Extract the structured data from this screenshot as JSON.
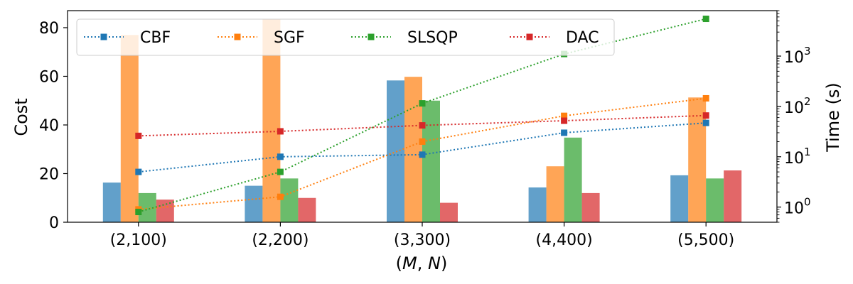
{
  "chart_data": {
    "type": "bar",
    "categories": [
      "(2,100)",
      "(2,200)",
      "(3,300)",
      "(4,400)",
      "(5,500)"
    ],
    "xlabel": "(M, N)",
    "xlabel_parts": [
      "(",
      "M",
      ", ",
      "N",
      ")"
    ],
    "ylabel": "Cost",
    "ylim": [
      0,
      87
    ],
    "yticks": [
      0,
      20,
      40,
      60,
      80
    ],
    "y2label": "Time (s)",
    "y2scale": "log",
    "y2lim": [
      0.5,
      8000
    ],
    "y2ticks": [
      1,
      10,
      100,
      1000
    ],
    "y2tick_labels": [
      {
        "base": "10",
        "exp": "0"
      },
      {
        "base": "10",
        "exp": "1"
      },
      {
        "base": "10",
        "exp": "2"
      },
      {
        "base": "10",
        "exp": "3"
      }
    ],
    "legend_position": "top",
    "series": [
      {
        "name": "CBF",
        "color": "#1f77b4",
        "cost": [
          16.3,
          15.0,
          58.3,
          14.3,
          19.3
        ],
        "time": [
          5,
          10,
          11,
          30,
          47
        ]
      },
      {
        "name": "SGF",
        "color": "#ff7f0e",
        "cost": [
          77.0,
          83.5,
          59.8,
          23.0,
          51.3
        ],
        "time": [
          0.9,
          1.6,
          20,
          65,
          145
        ]
      },
      {
        "name": "SLSQP",
        "color": "#2ca02c",
        "cost": [
          12.0,
          18.0,
          50.0,
          34.8,
          18.0
        ],
        "time": [
          0.8,
          5,
          115,
          1100,
          5500
        ]
      },
      {
        "name": "DAC",
        "color": "#d62728",
        "cost": [
          9.3,
          10.0,
          8.0,
          12.0,
          21.3
        ],
        "time": [
          26,
          32,
          42,
          52,
          66
        ]
      }
    ]
  }
}
